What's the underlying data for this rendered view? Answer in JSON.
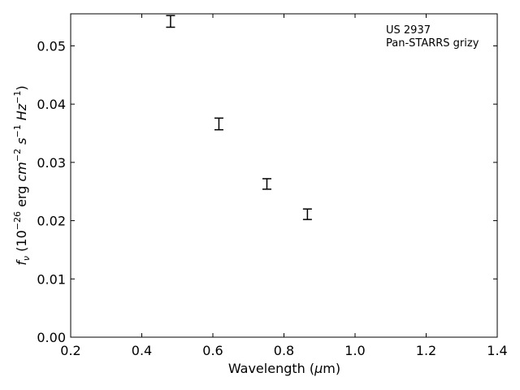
{
  "chart_data": {
    "type": "scatter",
    "xlabel_text": "Wavelength (",
    "xlabel_symbol": "μ",
    "xlabel_unit": "m)",
    "ylabel_lead": "f",
    "ylabel_sub": "ν",
    "ylabel_mid": " (10",
    "ylabel_exp1": "−26",
    "ylabel_erg": " erg ",
    "ylabel_cm": "cm",
    "ylabel_exp2": "−2",
    "ylabel_s": " s",
    "ylabel_exp3": "−1",
    "ylabel_hz": " Hz",
    "ylabel_exp4": "−1",
    "ylabel_close": ")",
    "annotation_lines": [
      "US 2937",
      "Pan-STARRS grizy"
    ],
    "xlim": [
      0.2,
      1.4
    ],
    "ylim": [
      0.0,
      0.0555
    ],
    "x_ticks": [
      0.2,
      0.4,
      0.6,
      0.8,
      1.0,
      1.2,
      1.4
    ],
    "x_tick_labels": [
      "0.2",
      "0.4",
      "0.6",
      "0.8",
      "1.0",
      "1.2",
      "1.4"
    ],
    "y_ticks": [
      0.0,
      0.01,
      0.02,
      0.03,
      0.04,
      0.05
    ],
    "y_tick_labels": [
      "0.00",
      "0.01",
      "0.02",
      "0.03",
      "0.04",
      "0.05"
    ],
    "grid": false,
    "series": [
      {
        "points": [
          {
            "x": 0.481,
            "y": 0.0542,
            "err": 0.001
          },
          {
            "x": 0.617,
            "y": 0.0366,
            "err": 0.001
          },
          {
            "x": 0.752,
            "y": 0.0263,
            "err": 0.0009
          },
          {
            "x": 0.866,
            "y": 0.0211,
            "err": 0.0009
          }
        ],
        "color": "#000000"
      }
    ]
  }
}
